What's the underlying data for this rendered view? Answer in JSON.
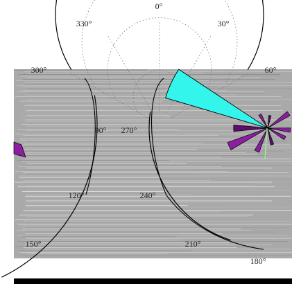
{
  "chart_data": {
    "type": "polar-rose",
    "angle_labels": [
      "0°",
      "30°",
      "60°",
      "90°",
      "120°",
      "150°",
      "180°",
      "210°",
      "240°",
      "270°",
      "300°",
      "330°"
    ],
    "angle_label_degrees": [
      0,
      30,
      60,
      90,
      120,
      150,
      180,
      210,
      240,
      270,
      300,
      330
    ],
    "zero_direction": "top",
    "rotation": "clockwise",
    "grid": true,
    "colors": {
      "dominant_petal": "#34f5ec",
      "minor_petals": "#8b1fa0",
      "dark_petals": "#5b0f6a",
      "outline": "#000000",
      "grid": "#777777",
      "scan_gray": "#a9a9a9"
    },
    "petals": [
      {
        "direction_deg": 295,
        "relative_length": 0.75,
        "color_role": "dominant_petal"
      },
      {
        "direction_deg": 55,
        "relative_length": 0.18,
        "color_role": "minor_petals"
      },
      {
        "direction_deg": 95,
        "relative_length": 0.16,
        "color_role": "minor_petals"
      },
      {
        "direction_deg": 120,
        "relative_length": 0.14,
        "color_role": "minor_petals"
      },
      {
        "direction_deg": 165,
        "relative_length": 0.12,
        "color_role": "dark_petals"
      },
      {
        "direction_deg": 205,
        "relative_length": 0.18,
        "color_role": "minor_petals"
      },
      {
        "direction_deg": 245,
        "relative_length": 0.3,
        "color_role": "minor_petals"
      },
      {
        "direction_deg": 270,
        "relative_length": 0.24,
        "color_role": "dark_petals"
      },
      {
        "direction_deg": 330,
        "relative_length": 0.11,
        "color_role": "minor_petals"
      },
      {
        "direction_deg": 10,
        "relative_length": 0.09,
        "color_role": "dark_petals"
      }
    ]
  }
}
